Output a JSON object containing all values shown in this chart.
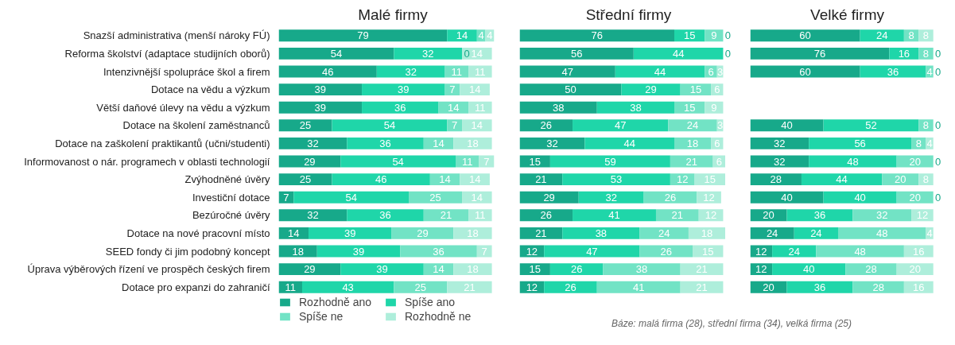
{
  "chart_data": [
    {
      "type": "bar",
      "title": "Malé firmy",
      "orientation": "horizontal",
      "stacked": true,
      "data_labels": true,
      "tick_labels": "y",
      "legend": "bottom",
      "categories": [
        "Snazší administrativa (menší nároky FÚ)",
        "Reforma školství (adaptace studijních oborů)",
        "Intenzivnější spolupráce škol a firem",
        "Dotace na vědu a výzkum",
        "Větší daňové úlevy na vědu a výzkum",
        "Dotace na školení zaměstnanců",
        "Dotace na zaškolení praktikantů (učni/studenti)",
        "Informovanost o nár. programech v oblasti technologií",
        "Zvýhodněné úvěry",
        "Investiční dotace",
        "Bezúročné úvěry",
        "Dotace na nové pracovní místo",
        "SEED fondy či jim podobný koncept",
        "Úprava výběrových řízení ve prospěch českých firem",
        "Dotace pro expanzi do zahraničí"
      ],
      "series": [
        {
          "name": "Rozhodně ano",
          "color": "#17a98a",
          "values": [
            79,
            54,
            46,
            39,
            39,
            25,
            32,
            29,
            25,
            7,
            32,
            14,
            18,
            29,
            11
          ]
        },
        {
          "name": "Spíše ano",
          "color": "#1fd6a9",
          "values": [
            14,
            32,
            32,
            39,
            36,
            54,
            36,
            54,
            46,
            54,
            36,
            39,
            39,
            39,
            43
          ]
        },
        {
          "name": "Spíše ne",
          "color": "#72e3c5",
          "values": [
            4,
            0,
            11,
            7,
            14,
            7,
            14,
            11,
            14,
            25,
            21,
            29,
            36,
            14,
            25
          ]
        },
        {
          "name": "Rozhodně ne",
          "color": "#aeeedb",
          "values": [
            4,
            14,
            11,
            14,
            11,
            14,
            18,
            7,
            14,
            14,
            11,
            18,
            7,
            18,
            21
          ]
        }
      ]
    },
    {
      "type": "bar",
      "title": "Střední firmy",
      "orientation": "horizontal",
      "stacked": true,
      "data_labels": true,
      "tick_labels": false,
      "categories": [
        null,
        null,
        null,
        null,
        null,
        null,
        null,
        null,
        null,
        null,
        null,
        null,
        null,
        null,
        null
      ],
      "series": [
        {
          "color": "#17a98a",
          "values": [
            76,
            56,
            47,
            50,
            38,
            26,
            32,
            15,
            21,
            29,
            26,
            21,
            12,
            15,
            12
          ]
        },
        {
          "color": "#1fd6a9",
          "values": [
            15,
            44,
            44,
            29,
            38,
            47,
            44,
            59,
            53,
            32,
            41,
            38,
            47,
            26,
            26
          ]
        },
        {
          "color": "#72e3c5",
          "values": [
            9,
            0,
            6,
            15,
            15,
            24,
            18,
            21,
            12,
            26,
            21,
            24,
            26,
            38,
            41
          ]
        },
        {
          "color": "#aeeedb",
          "values": [
            0,
            0,
            3,
            6,
            9,
            3,
            6,
            6,
            15,
            12,
            12,
            18,
            15,
            21,
            21
          ],
          "value_labels": [
            "0",
            null,
            "3",
            "6",
            "9",
            "3",
            "6",
            "6",
            "15",
            "12",
            "12",
            "18",
            "15",
            "21",
            "21"
          ]
        }
      ]
    },
    {
      "type": "bar",
      "title": "Velké firmy",
      "orientation": "horizontal",
      "stacked": true,
      "data_labels": true,
      "tick_labels": false,
      "annotations": [
        "Báze: malá firma (28), střední firma (34), velká firma (25)"
      ],
      "categories": [
        null,
        null,
        null,
        null,
        null,
        null,
        null,
        null,
        null,
        null,
        null,
        null,
        null,
        null,
        null
      ],
      "series": [
        {
          "color": "#17a98a",
          "values": [
            60,
            76,
            60,
            null,
            null,
            40,
            32,
            32,
            28,
            40,
            20,
            24,
            12,
            12,
            20
          ]
        },
        {
          "color": "#1fd6a9",
          "values": [
            24,
            16,
            36,
            null,
            null,
            52,
            56,
            48,
            44,
            40,
            36,
            24,
            24,
            40,
            36
          ]
        },
        {
          "color": "#72e3c5",
          "values": [
            8,
            8,
            4,
            null,
            null,
            8,
            8,
            20,
            20,
            20,
            32,
            48,
            48,
            28,
            28
          ]
        },
        {
          "color": "#aeeedb",
          "values": [
            8,
            0,
            0,
            null,
            null,
            0,
            4,
            0,
            8,
            0,
            12,
            4,
            16,
            20,
            16
          ]
        }
      ]
    }
  ]
}
